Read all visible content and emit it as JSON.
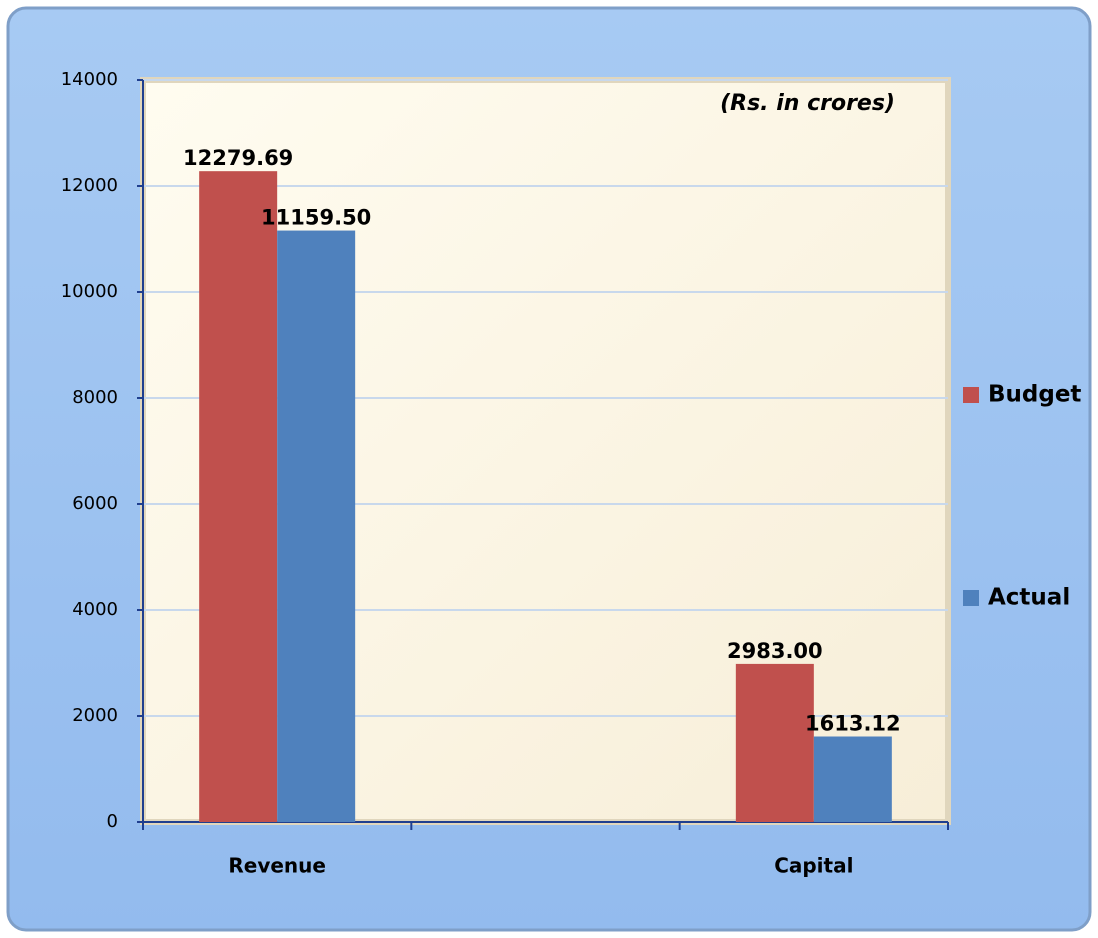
{
  "chart_data": {
    "type": "bar",
    "annotation": "(Rs. in crores)",
    "categories": [
      "Revenue",
      null,
      "Capital"
    ],
    "series": [
      {
        "name": "Budget",
        "color": "#c0504d",
        "values": [
          12279.69,
          null,
          2983.0
        ],
        "value_labels": [
          "12279.69",
          null,
          "2983.00"
        ]
      },
      {
        "name": "Actual",
        "color": "#4f81bd",
        "values": [
          11159.5,
          null,
          1613.12
        ],
        "value_labels": [
          "11159.50",
          null,
          "1613.12"
        ]
      }
    ],
    "ylim": [
      0,
      14000
    ],
    "yticks": [
      0,
      2000,
      4000,
      6000,
      8000,
      10000,
      12000,
      14000
    ],
    "grid": true,
    "legend": "right"
  }
}
